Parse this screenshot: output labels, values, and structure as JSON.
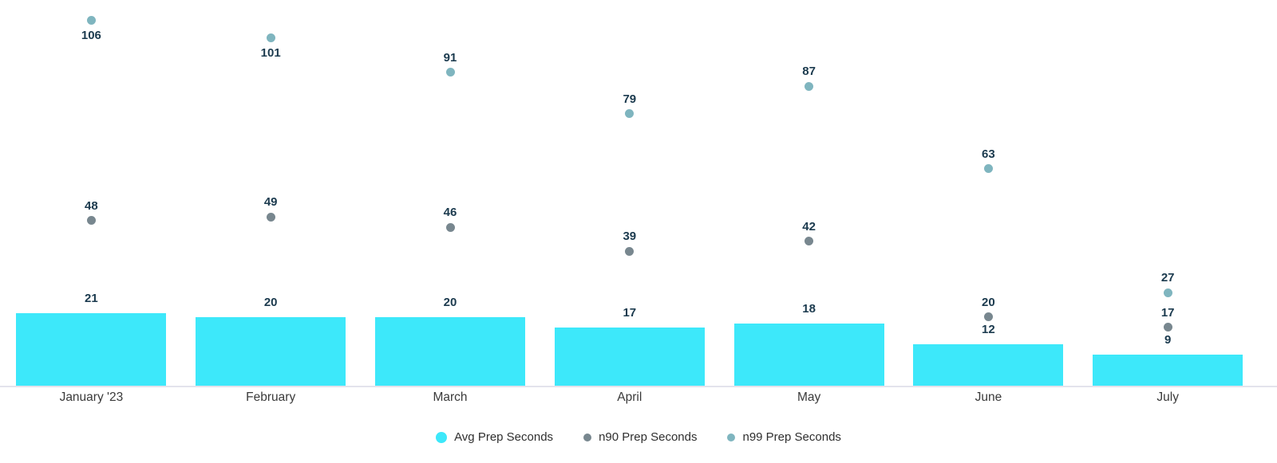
{
  "chart_data": {
    "type": "bar",
    "title": "",
    "xlabel": "",
    "ylabel": "",
    "categories": [
      "January '23",
      "February",
      "March",
      "April",
      "May",
      "June",
      "July"
    ],
    "series": [
      {
        "name": "Avg Prep Seconds",
        "render": "bar",
        "color": "#3DE8FA",
        "values": [
          21,
          20,
          20,
          17,
          18,
          12,
          9
        ]
      },
      {
        "name": "n90 Prep Seconds",
        "render": "point",
        "color": "#78878F",
        "values": [
          48,
          49,
          46,
          39,
          42,
          20,
          17
        ]
      },
      {
        "name": "n99 Prep Seconds",
        "render": "point",
        "color": "#7FB5BF",
        "values": [
          106,
          101,
          91,
          79,
          87,
          63,
          27
        ]
      }
    ],
    "ylim": [
      0,
      112
    ],
    "grid": false,
    "legend_position": "bottom-center",
    "value_label_color": "#1B3A4E",
    "axis_line_color": "#E3E3EC",
    "background": "#FFFFFF"
  }
}
